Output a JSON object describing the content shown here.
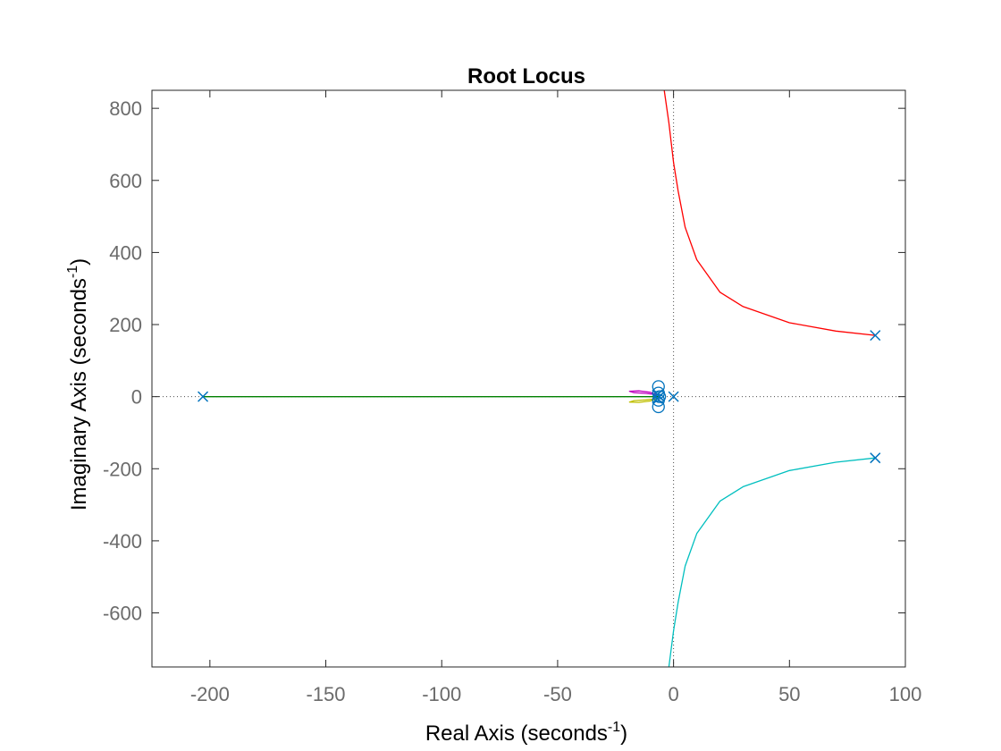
{
  "chart_data": {
    "type": "line",
    "title": "Root Locus",
    "xlabel": {
      "main": "Real Axis (seconds",
      "sup": "-1",
      "close": ")"
    },
    "ylabel": {
      "main": "Imaginary Axis (seconds",
      "sup": "-1",
      "close": ")"
    },
    "xlim": [
      -225,
      100
    ],
    "ylim": [
      -750,
      850
    ],
    "xticks": [
      -200,
      -150,
      -100,
      -50,
      0,
      50,
      100
    ],
    "xtick_labels": [
      "-200",
      "-150",
      "-100",
      "-50",
      "0",
      "50",
      "100"
    ],
    "yticks": [
      -600,
      -400,
      -200,
      0,
      200,
      400,
      600,
      800
    ],
    "ytick_labels": [
      "-600",
      "-400",
      "-200",
      "0",
      "200",
      "400",
      "600",
      "800"
    ],
    "grid": false,
    "reference_lines": [
      "x=0 dotted",
      "y=0 dotted"
    ],
    "poles": [
      [
        -203,
        0
      ],
      [
        87,
        170
      ],
      [
        87,
        -170
      ],
      [
        0,
        0
      ],
      [
        -6,
        0
      ],
      [
        -7,
        5
      ],
      [
        -7,
        -5
      ]
    ],
    "zeros": [
      [
        -6.5,
        28
      ],
      [
        -6.5,
        -28
      ],
      [
        -6.5,
        10
      ],
      [
        -6.5,
        -10
      ],
      [
        -6,
        0
      ]
    ],
    "series": [
      {
        "color": "#ff0000",
        "points": [
          [
            87,
            170
          ],
          [
            70,
            182
          ],
          [
            50,
            205
          ],
          [
            30,
            250
          ],
          [
            20,
            290
          ],
          [
            10,
            380
          ],
          [
            5,
            470
          ],
          [
            2,
            570
          ],
          [
            0,
            650
          ],
          [
            -2,
            760
          ],
          [
            -4,
            850
          ]
        ]
      },
      {
        "color": "#00bfbf",
        "points": [
          [
            87,
            -170
          ],
          [
            70,
            -182
          ],
          [
            50,
            -205
          ],
          [
            30,
            -250
          ],
          [
            20,
            -290
          ],
          [
            10,
            -380
          ],
          [
            5,
            -470
          ],
          [
            2,
            -570
          ],
          [
            0,
            -650
          ],
          [
            -1,
            -700
          ],
          [
            -2,
            -750
          ]
        ]
      },
      {
        "color": "#008000",
        "points": [
          [
            -203,
            0
          ],
          [
            -6,
            0
          ]
        ]
      },
      {
        "color": "#bf00bf",
        "points": [
          [
            -7,
            5
          ],
          [
            -10,
            12
          ],
          [
            -15,
            16
          ],
          [
            -19,
            15
          ],
          [
            -17,
            11
          ],
          [
            -12,
            9
          ],
          [
            -8,
            6
          ]
        ]
      },
      {
        "color": "#bfbf00",
        "points": [
          [
            -7,
            -5
          ],
          [
            -10,
            -12
          ],
          [
            -15,
            -16
          ],
          [
            -19,
            -15
          ],
          [
            -17,
            -11
          ],
          [
            -12,
            -9
          ],
          [
            -8,
            -6
          ]
        ]
      }
    ],
    "marker_color": "#0072bd"
  }
}
